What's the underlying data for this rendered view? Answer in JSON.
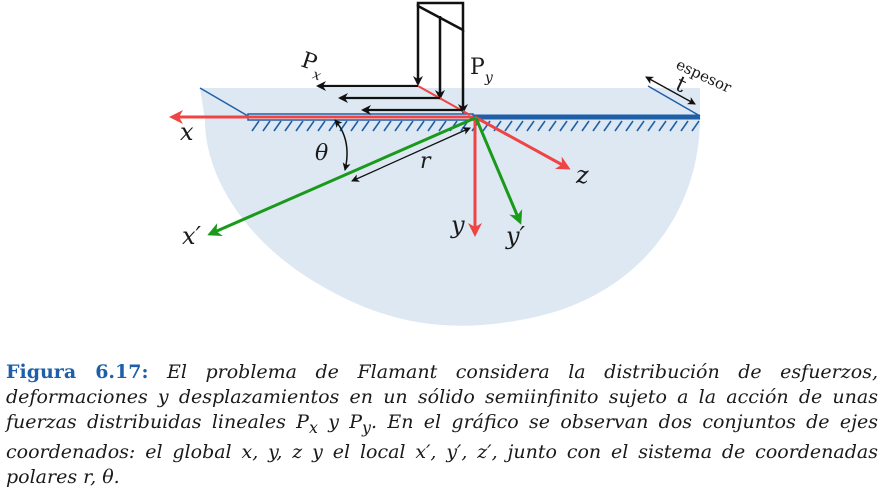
{
  "figure": {
    "labels": {
      "px_letter": "P",
      "px_sub": "x",
      "py_letter": "P",
      "py_sub": "y",
      "thickness_word": "espesor",
      "thickness_symbol": "t",
      "axis_x": "x",
      "axis_y": "y",
      "axis_z": "z",
      "axis_x_local": "x′",
      "axis_y_local": "y′",
      "theta": "θ",
      "radius": "r"
    },
    "colors": {
      "solid_fill": "#dde8f3",
      "surface_line": "#1f5fa8",
      "global_axes": "#ee4444",
      "local_axes": "#1a9a1a",
      "force_arrows": "#111111",
      "caption_label": "#1f5fa8"
    }
  },
  "caption": {
    "label": "Figura 6.17:",
    "text": "El problema de Flamant considera la distribución de esfuerzos, deformaciones y desplazamientos en un sólido semiinfinito sujeto a la acción de unas fuerzas distribuidas lineales P",
    "sub_x": "x",
    "mid": " y P",
    "sub_y": "y",
    "text2": ". En el gráfico se observan dos conjuntos de ejes coordenados: el global x, y, z y el local x′, y′, z′, junto con el sistema de coordenadas polares r, θ."
  }
}
